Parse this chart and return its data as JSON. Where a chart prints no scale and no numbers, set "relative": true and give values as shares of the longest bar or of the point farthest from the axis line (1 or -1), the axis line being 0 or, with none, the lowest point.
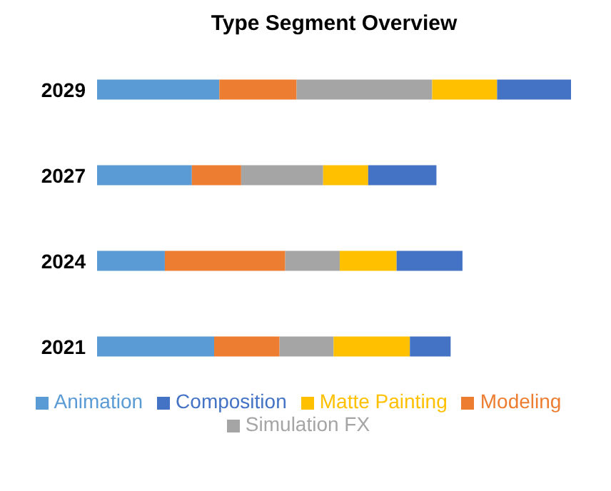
{
  "chart_data": {
    "type": "bar",
    "orientation": "horizontal",
    "stacked": true,
    "relative": true,
    "title": "Type Segment Overview",
    "categories": [
      "2029",
      "2027",
      "2024",
      "2021"
    ],
    "series": [
      {
        "name": "Animation",
        "color": "#5b9bd5",
        "values": [
          0.258,
          0.2,
          0.143,
          0.247
        ]
      },
      {
        "name": "Modeling",
        "color": "#ed7d31",
        "values": [
          0.163,
          0.104,
          0.254,
          0.138
        ]
      },
      {
        "name": "Simulation FX",
        "color": "#a5a5a5",
        "values": [
          0.286,
          0.173,
          0.115,
          0.114
        ]
      },
      {
        "name": "Matte Painting",
        "color": "#ffc000",
        "values": [
          0.137,
          0.095,
          0.12,
          0.161
        ]
      },
      {
        "name": "Composition",
        "color": "#4472c4",
        "values": [
          0.156,
          0.144,
          0.139,
          0.086
        ]
      }
    ],
    "legend": "bottom",
    "grid": false
  }
}
